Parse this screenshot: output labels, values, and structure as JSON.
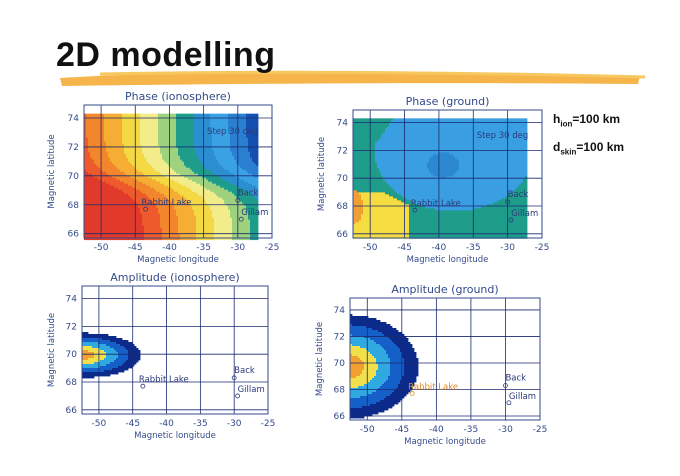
{
  "slide": {
    "title": "2D modelling",
    "params": [
      {
        "symbol": "h",
        "sub": "ion",
        "value": "=100 km"
      },
      {
        "symbol": "d",
        "sub": "skin",
        "value": "=100 km"
      }
    ]
  },
  "colors": {
    "accent_brush": "#f0a020",
    "axis": "#344a8a"
  },
  "chart_data": [
    {
      "type": "heatmap",
      "id": "phase-ionosphere",
      "title": "Phase (ionosphere)",
      "xlabel": "Magnetic longitude",
      "ylabel": "Magnetic latitude",
      "xlim": [
        -52.5,
        -25
      ],
      "ylim": [
        65.7,
        74.9
      ],
      "xticks": [
        -50,
        -45,
        -40,
        -35,
        -30,
        -25
      ],
      "yticks": [
        66,
        68,
        70,
        72,
        74
      ],
      "annotation": "Step 30 deg",
      "grid": true,
      "stations": [
        {
          "name": "Rabbit Lake",
          "lon": -43.5,
          "lat": 67.7
        },
        {
          "name": "Back",
          "lon": -30,
          "lat": 68.3
        },
        {
          "name": "Gillam",
          "lon": -29.5,
          "lat": 67.0
        }
      ]
    },
    {
      "type": "heatmap",
      "id": "phase-ground",
      "title": "Phase (ground)",
      "xlabel": "Magnetic longitude",
      "ylabel": "Magnetic latitude",
      "xlim": [
        -52.5,
        -25
      ],
      "ylim": [
        65.7,
        74.9
      ],
      "xticks": [
        -50,
        -45,
        -40,
        -35,
        -30,
        -25
      ],
      "yticks": [
        66,
        68,
        70,
        72,
        74
      ],
      "annotation": "Step 30 deg",
      "grid": true,
      "stations": [
        {
          "name": "Rabbit Lake",
          "lon": -43.5,
          "lat": 67.7
        },
        {
          "name": "Back",
          "lon": -30,
          "lat": 68.3
        },
        {
          "name": "Gillam",
          "lon": -29.5,
          "lat": 67.0
        }
      ]
    },
    {
      "type": "heatmap",
      "id": "amplitude-ionosphere",
      "title": "Amplitude (ionosphere)",
      "xlabel": "Magnetic longitude",
      "ylabel": "Magnetic latitude",
      "xlim": [
        -52.5,
        -25
      ],
      "ylim": [
        65.7,
        74.9
      ],
      "xticks": [
        -50,
        -45,
        -40,
        -35,
        -30,
        -25
      ],
      "yticks": [
        66,
        68,
        70,
        72,
        74
      ],
      "annotation": "",
      "grid": true,
      "stations": [
        {
          "name": "Rabbit Lake",
          "lon": -43.5,
          "lat": 67.7
        },
        {
          "name": "Back",
          "lon": -30,
          "lat": 68.3
        },
        {
          "name": "Gillam",
          "lon": -29.5,
          "lat": 67.0
        }
      ]
    },
    {
      "type": "heatmap",
      "id": "amplitude-ground",
      "title": "Amplitude (ground)",
      "xlabel": "Magnetic longitude",
      "ylabel": "Magnetic latitude",
      "xlim": [
        -52.5,
        -25
      ],
      "ylim": [
        65.7,
        74.9
      ],
      "xticks": [
        -50,
        -45,
        -40,
        -35,
        -30,
        -25
      ],
      "yticks": [
        66,
        68,
        70,
        72,
        74
      ],
      "annotation": "",
      "grid": true,
      "stations": [
        {
          "name": "Rabbit Lake",
          "lon": -43.5,
          "lat": 67.7
        },
        {
          "name": "Back",
          "lon": -30,
          "lat": 68.3
        },
        {
          "name": "Gillam",
          "lon": -29.5,
          "lat": 67.0
        }
      ]
    }
  ]
}
